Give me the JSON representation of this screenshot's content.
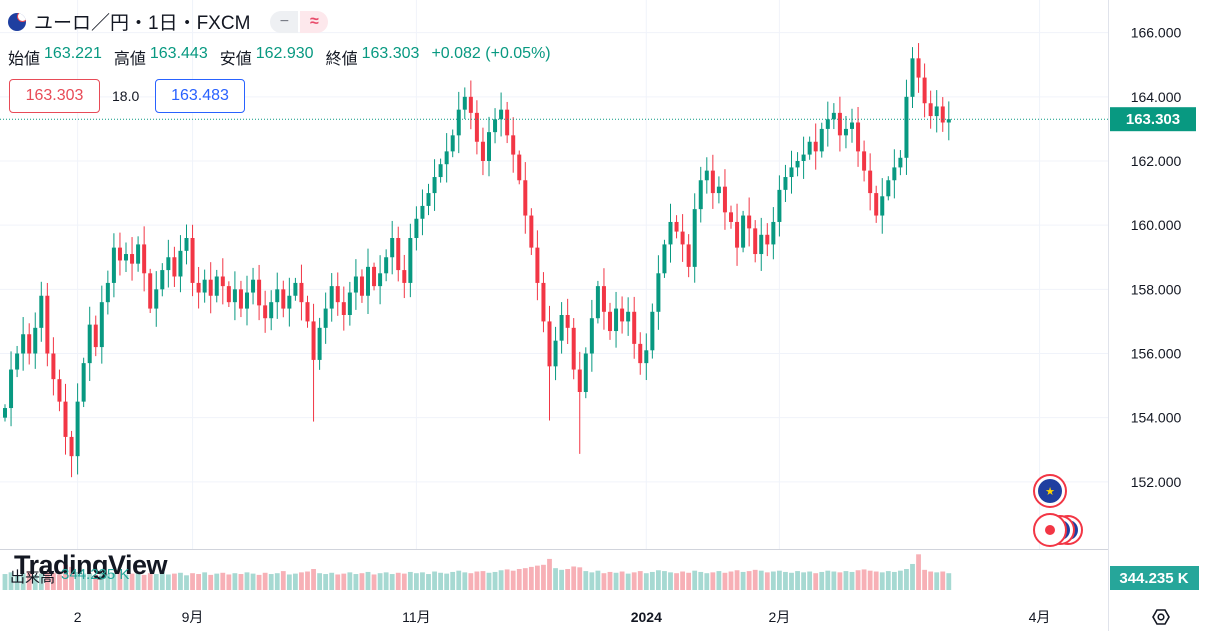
{
  "header": {
    "title": "ユーロ／円・1日・FXCM",
    "pill_left": "−",
    "pill_right": "≈"
  },
  "ohlc": {
    "open_label": "始値",
    "open": "163.221",
    "high_label": "高値",
    "high": "163.443",
    "low_label": "安値",
    "low": "162.930",
    "close_label": "終値",
    "close": "163.303",
    "change": "+0.082 (+0.05%)"
  },
  "quote": {
    "sell": "163.303",
    "spread": "18.0",
    "buy": "163.483"
  },
  "volume": {
    "label": "出来高",
    "value": "344.235 K"
  },
  "logo_text": "TradingView",
  "colors": {
    "up": "#089981",
    "down": "#f23645",
    "vol_up": "#a6d9d2",
    "vol_down": "#f7b0b6",
    "price_badge": "#089981",
    "grid": "#f0f3fa"
  },
  "chart_data": {
    "type": "candlestick",
    "ylim": [
      150.0,
      166.8
    ],
    "y_ticks": [
      "166.000",
      "164.000",
      "162.000",
      "160.000",
      "158.000",
      "156.000",
      "154.000",
      "152.000"
    ],
    "y_tick_values": [
      166,
      164,
      162,
      160,
      158,
      156,
      154,
      152
    ],
    "x_ticks": [
      "2",
      "9月",
      "11月",
      "2024",
      "2月",
      "4月"
    ],
    "x_tick_index": [
      12,
      31,
      68,
      106,
      128,
      171
    ],
    "last_price": "163.303",
    "volume_badge": "344.235 K",
    "closes": [
      154.3,
      155.5,
      156.0,
      156.6,
      156.0,
      156.8,
      157.8,
      156.0,
      155.2,
      154.5,
      153.4,
      152.8,
      154.5,
      155.7,
      156.9,
      156.2,
      157.6,
      158.2,
      159.3,
      158.9,
      159.1,
      158.8,
      159.4,
      158.5,
      157.4,
      158.0,
      158.6,
      159.0,
      158.4,
      159.2,
      159.6,
      158.2,
      157.9,
      158.3,
      157.8,
      158.4,
      158.1,
      157.6,
      158.0,
      157.4,
      157.9,
      158.3,
      157.5,
      157.1,
      157.6,
      158.0,
      157.4,
      157.8,
      158.2,
      157.6,
      157.0,
      155.8,
      156.8,
      157.4,
      158.1,
      157.6,
      157.2,
      157.9,
      158.4,
      157.8,
      158.7,
      158.1,
      158.5,
      159.0,
      159.6,
      158.6,
      158.2,
      159.6,
      160.2,
      160.6,
      161.0,
      161.5,
      161.9,
      162.3,
      162.8,
      163.6,
      164.0,
      163.5,
      162.6,
      162.0,
      162.9,
      163.3,
      163.6,
      162.8,
      162.2,
      161.4,
      160.3,
      159.3,
      158.2,
      157.0,
      155.6,
      156.4,
      157.2,
      156.8,
      155.5,
      154.8,
      156.0,
      157.1,
      158.1,
      157.3,
      156.7,
      157.4,
      157.0,
      157.3,
      156.3,
      155.7,
      156.1,
      157.3,
      158.5,
      159.4,
      160.1,
      159.8,
      159.4,
      158.7,
      160.5,
      161.4,
      161.7,
      161.0,
      161.2,
      160.4,
      160.1,
      159.3,
      160.3,
      159.9,
      159.1,
      159.7,
      159.4,
      160.1,
      161.1,
      161.5,
      161.8,
      162.0,
      162.2,
      162.6,
      162.3,
      163.0,
      163.3,
      163.5,
      162.8,
      163.0,
      163.2,
      162.3,
      161.7,
      161.0,
      160.3,
      160.9,
      161.4,
      161.8,
      162.1,
      164.0,
      165.2,
      164.6,
      163.8,
      163.4,
      163.7,
      163.2,
      163.303
    ],
    "volumes": [
      0.38,
      0.42,
      0.35,
      0.4,
      0.45,
      0.36,
      0.39,
      0.44,
      0.41,
      0.37,
      0.6,
      0.55,
      0.43,
      0.39,
      0.4,
      0.36,
      0.42,
      0.38,
      0.41,
      0.44,
      0.37,
      0.39,
      0.42,
      0.36,
      0.4,
      0.38,
      0.43,
      0.37,
      0.39,
      0.41,
      0.35,
      0.4,
      0.38,
      0.42,
      0.36,
      0.39,
      0.41,
      0.37,
      0.4,
      0.38,
      0.42,
      0.39,
      0.36,
      0.41,
      0.38,
      0.4,
      0.45,
      0.37,
      0.39,
      0.42,
      0.44,
      0.5,
      0.4,
      0.38,
      0.41,
      0.37,
      0.39,
      0.42,
      0.38,
      0.4,
      0.43,
      0.37,
      0.4,
      0.42,
      0.38,
      0.41,
      0.39,
      0.43,
      0.4,
      0.42,
      0.38,
      0.44,
      0.41,
      0.39,
      0.43,
      0.46,
      0.42,
      0.4,
      0.44,
      0.45,
      0.41,
      0.43,
      0.47,
      0.49,
      0.46,
      0.5,
      0.52,
      0.55,
      0.58,
      0.6,
      0.74,
      0.52,
      0.48,
      0.5,
      0.56,
      0.54,
      0.45,
      0.42,
      0.46,
      0.4,
      0.43,
      0.41,
      0.44,
      0.39,
      0.42,
      0.45,
      0.4,
      0.43,
      0.47,
      0.45,
      0.42,
      0.4,
      0.44,
      0.41,
      0.46,
      0.43,
      0.4,
      0.42,
      0.45,
      0.41,
      0.44,
      0.47,
      0.43,
      0.45,
      0.48,
      0.46,
      0.42,
      0.44,
      0.46,
      0.43,
      0.41,
      0.45,
      0.42,
      0.44,
      0.4,
      0.43,
      0.46,
      0.44,
      0.42,
      0.45,
      0.43,
      0.47,
      0.49,
      0.46,
      0.44,
      0.42,
      0.45,
      0.43,
      0.46,
      0.5,
      0.62,
      0.85,
      0.48,
      0.44,
      0.42,
      0.44,
      0.4
    ]
  }
}
